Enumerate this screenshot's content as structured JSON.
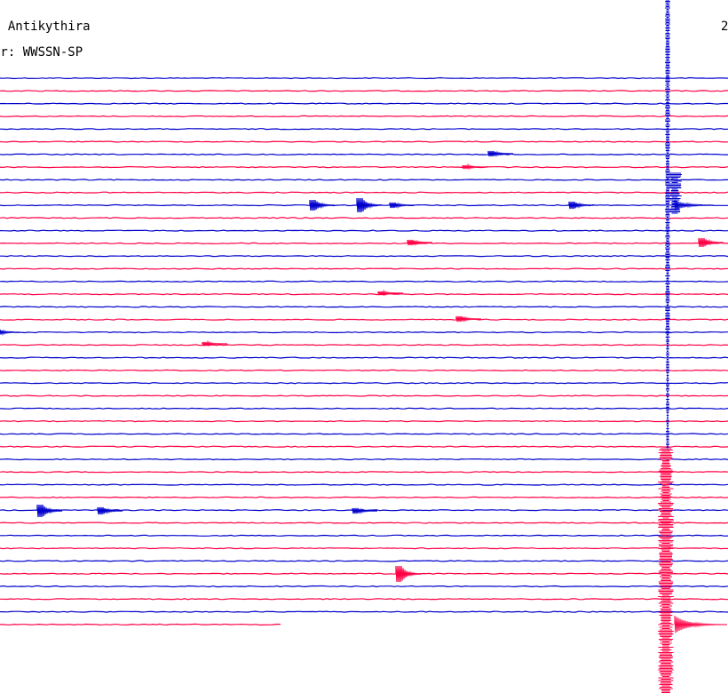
{
  "header": {
    "station": "n Antikythira",
    "filter": "er: WWSSN-SP",
    "corner": "2"
  },
  "colors": {
    "trace_a": "#0000cc",
    "trace_b": "#ff0044",
    "background": "#ffffff"
  }
}
